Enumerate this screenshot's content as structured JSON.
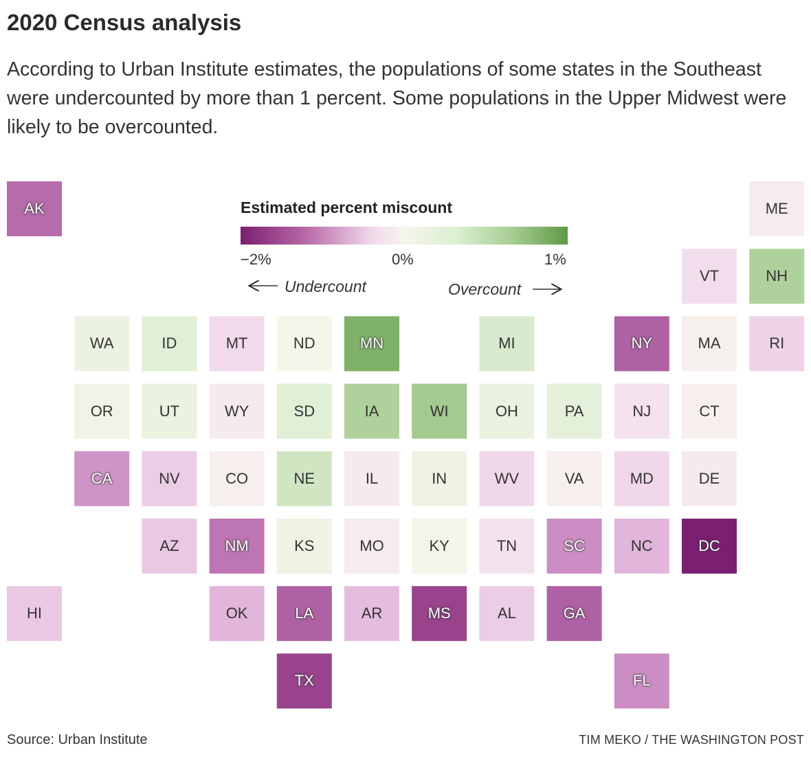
{
  "header": {
    "title": "2020 Census analysis",
    "subtitle": "According to Urban Institute estimates, the populations of some states in the Southeast were undercounted by more than 1 percent. Some populations in the Upper Midwest were likely to be overcounted."
  },
  "legend": {
    "title": "Estimated percent miscount",
    "tick_min": "−2%",
    "tick_mid": "0%",
    "tick_max": "1%",
    "undercount_label": "Undercount",
    "overcount_label": "Overcount",
    "domain": [
      -2,
      0,
      1
    ],
    "colors": [
      "#7b1f73",
      "#f7f6ec",
      "#5f9a45"
    ]
  },
  "chart_data": {
    "type": "tile-map",
    "value_units": "estimated percent miscount",
    "tiles": [
      {
        "state": "AK",
        "col": 0,
        "row": 0,
        "value": -1.2
      },
      {
        "state": "ME",
        "col": 11,
        "row": 0,
        "value": -0.1
      },
      {
        "state": "VT",
        "col": 10,
        "row": 1,
        "value": -0.25
      },
      {
        "state": "NH",
        "col": 11,
        "row": 1,
        "value": 0.55
      },
      {
        "state": "WA",
        "col": 1,
        "row": 2,
        "value": 0.12
      },
      {
        "state": "ID",
        "col": 2,
        "row": 2,
        "value": 0.25
      },
      {
        "state": "MT",
        "col": 3,
        "row": 2,
        "value": -0.28
      },
      {
        "state": "ND",
        "col": 4,
        "row": 2,
        "value": 0.02
      },
      {
        "state": "MN",
        "col": 5,
        "row": 2,
        "value": 0.82
      },
      {
        "state": "MI",
        "col": 7,
        "row": 2,
        "value": 0.3
      },
      {
        "state": "NY",
        "col": 9,
        "row": 2,
        "value": -1.3
      },
      {
        "state": "MA",
        "col": 10,
        "row": 2,
        "value": -0.05
      },
      {
        "state": "RI",
        "col": 11,
        "row": 2,
        "value": -0.35
      },
      {
        "state": "OR",
        "col": 1,
        "row": 3,
        "value": 0.08
      },
      {
        "state": "UT",
        "col": 2,
        "row": 3,
        "value": 0.14
      },
      {
        "state": "WY",
        "col": 3,
        "row": 3,
        "value": -0.12
      },
      {
        "state": "SD",
        "col": 4,
        "row": 3,
        "value": 0.25
      },
      {
        "state": "IA",
        "col": 5,
        "row": 3,
        "value": 0.55
      },
      {
        "state": "WI",
        "col": 6,
        "row": 3,
        "value": 0.62
      },
      {
        "state": "OH",
        "col": 7,
        "row": 3,
        "value": 0.15
      },
      {
        "state": "PA",
        "col": 8,
        "row": 3,
        "value": 0.2
      },
      {
        "state": "NJ",
        "col": 9,
        "row": 3,
        "value": -0.2
      },
      {
        "state": "CT",
        "col": 10,
        "row": 3,
        "value": -0.06
      },
      {
        "state": "CA",
        "col": 1,
        "row": 4,
        "value": -0.85
      },
      {
        "state": "NV",
        "col": 2,
        "row": 4,
        "value": -0.4
      },
      {
        "state": "CO",
        "col": 3,
        "row": 4,
        "value": -0.06
      },
      {
        "state": "NE",
        "col": 4,
        "row": 4,
        "value": 0.35
      },
      {
        "state": "IL",
        "col": 5,
        "row": 4,
        "value": -0.12
      },
      {
        "state": "IN",
        "col": 6,
        "row": 4,
        "value": 0.1
      },
      {
        "state": "WV",
        "col": 7,
        "row": 4,
        "value": -0.3
      },
      {
        "state": "VA",
        "col": 8,
        "row": 4,
        "value": -0.06
      },
      {
        "state": "MD",
        "col": 9,
        "row": 4,
        "value": -0.3
      },
      {
        "state": "DE",
        "col": 10,
        "row": 4,
        "value": -0.12
      },
      {
        "state": "AZ",
        "col": 2,
        "row": 5,
        "value": -0.45
      },
      {
        "state": "NM",
        "col": 3,
        "row": 5,
        "value": -1.1
      },
      {
        "state": "KS",
        "col": 4,
        "row": 5,
        "value": 0.1
      },
      {
        "state": "MO",
        "col": 5,
        "row": 5,
        "value": -0.1
      },
      {
        "state": "KY",
        "col": 6,
        "row": 5,
        "value": 0.03
      },
      {
        "state": "TN",
        "col": 7,
        "row": 5,
        "value": -0.2
      },
      {
        "state": "SC",
        "col": 8,
        "row": 5,
        "value": -0.9
      },
      {
        "state": "NC",
        "col": 9,
        "row": 5,
        "value": -0.6
      },
      {
        "state": "DC",
        "col": 10,
        "row": 5,
        "value": -2.0
      },
      {
        "state": "HI",
        "col": 0,
        "row": 6,
        "value": -0.45
      },
      {
        "state": "OK",
        "col": 3,
        "row": 6,
        "value": -0.6
      },
      {
        "state": "LA",
        "col": 4,
        "row": 6,
        "value": -1.3
      },
      {
        "state": "AR",
        "col": 5,
        "row": 6,
        "value": -0.55
      },
      {
        "state": "MS",
        "col": 6,
        "row": 6,
        "value": -1.6
      },
      {
        "state": "AL",
        "col": 7,
        "row": 6,
        "value": -0.4
      },
      {
        "state": "GA",
        "col": 8,
        "row": 6,
        "value": -1.3
      },
      {
        "state": "TX",
        "col": 4,
        "row": 7,
        "value": -1.6
      },
      {
        "state": "FL",
        "col": 9,
        "row": 7,
        "value": -0.9
      }
    ]
  },
  "footer": {
    "source": "Source: Urban Institute",
    "credit": "TIM MEKO / THE WASHINGTON POST"
  }
}
